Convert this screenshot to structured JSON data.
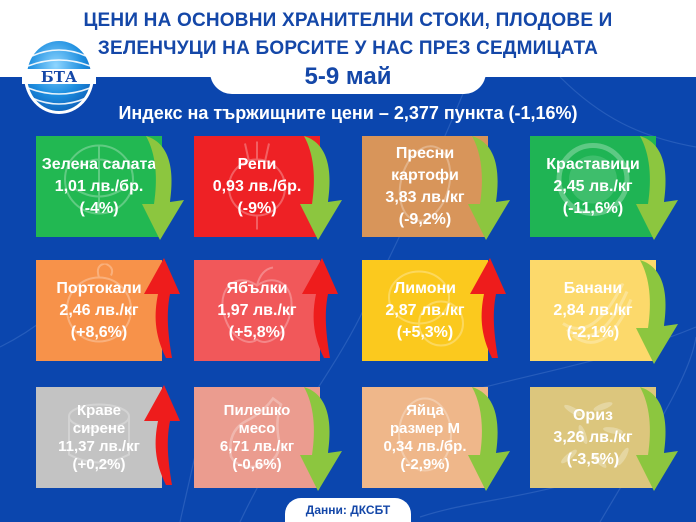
{
  "header": {
    "title_line1": "ЦЕНИ НА ОСНОВНИ ХРАНИТЕЛНИ СТОКИ, ПЛОДОВЕ И",
    "title_line2": "ЗЕЛЕНЧУЦИ НА БОРСИТЕ У НАС ПРЕЗ СЕДМИЦАТА",
    "date_range": "5-9 май",
    "logo_text": "БТА"
  },
  "index": {
    "label": "Индекс на тържищните цени – 2,377 пункта (-1,16%)"
  },
  "colors": {
    "background_blue": "#0b46ae",
    "title_blue": "#1447a8",
    "arrow_down": "#8cc63f",
    "arrow_up": "#ee1c1c"
  },
  "products": [
    {
      "name_lines": [
        "Зелена салата"
      ],
      "price": "1,01 лв./бр.",
      "change": "(-4%)",
      "trend": "down",
      "color": "#22b852",
      "icon": "lettuce-icon"
    },
    {
      "name_lines": [
        "Репи"
      ],
      "price": "0,93 лв./бр.",
      "change": "(-9%)",
      "trend": "down",
      "color": "#ee2125",
      "icon": "turnip-icon"
    },
    {
      "name_lines": [
        "Пресни",
        "картофи"
      ],
      "price": "3,83 лв./кг",
      "change": "(-9,2%)",
      "trend": "down",
      "color": "#d8955a",
      "icon": "potato-icon"
    },
    {
      "name_lines": [
        "Краставици"
      ],
      "price": "2,45 лв./кг",
      "change": "(-11,6%)",
      "trend": "down",
      "color": "#1fb454",
      "icon": "cucumber-icon"
    },
    {
      "name_lines": [
        "Портокали"
      ],
      "price": "2,46 лв./кг",
      "change": "(+8,6%)",
      "trend": "up",
      "color": "#f7924a",
      "icon": "orange-icon"
    },
    {
      "name_lines": [
        "Ябълки"
      ],
      "price": "1,97 лв./кг",
      "change": "(+5,8%)",
      "trend": "up",
      "color": "#f1585a",
      "icon": "apple-icon"
    },
    {
      "name_lines": [
        "Лимони"
      ],
      "price": "2,87 лв./кг",
      "change": "(+5,3%)",
      "trend": "up",
      "color": "#fbc91e",
      "icon": "lemon-icon"
    },
    {
      "name_lines": [
        "Банани"
      ],
      "price": "2,84 лв./кг",
      "change": "(-2,1%)",
      "trend": "down",
      "color": "#fcd96b",
      "icon": "banana-icon"
    },
    {
      "name_lines": [
        "Краве",
        "сирене"
      ],
      "price": "11,37 лв./кг",
      "change": "(+0,2%)",
      "trend": "up",
      "color": "#c3c3c3",
      "icon": "cheese-icon"
    },
    {
      "name_lines": [
        "Пилешко",
        "месо"
      ],
      "price": "6,71 лв./кг",
      "change": "(-0,6%)",
      "trend": "down",
      "color": "#eb9c8f",
      "icon": "chicken-icon"
    },
    {
      "name_lines": [
        "Яйца",
        "размер М"
      ],
      "price": "0,34 лв./бр.",
      "change": "(-2,9%)",
      "trend": "down",
      "color": "#efb78a",
      "icon": "egg-icon"
    },
    {
      "name_lines": [
        "Ориз"
      ],
      "price": "3,26 лв./кг",
      "change": "(-3,5%)",
      "trend": "down",
      "color": "#dcc67d",
      "icon": "rice-icon"
    }
  ],
  "footer": {
    "source": "Данни: ДКСБТ"
  }
}
